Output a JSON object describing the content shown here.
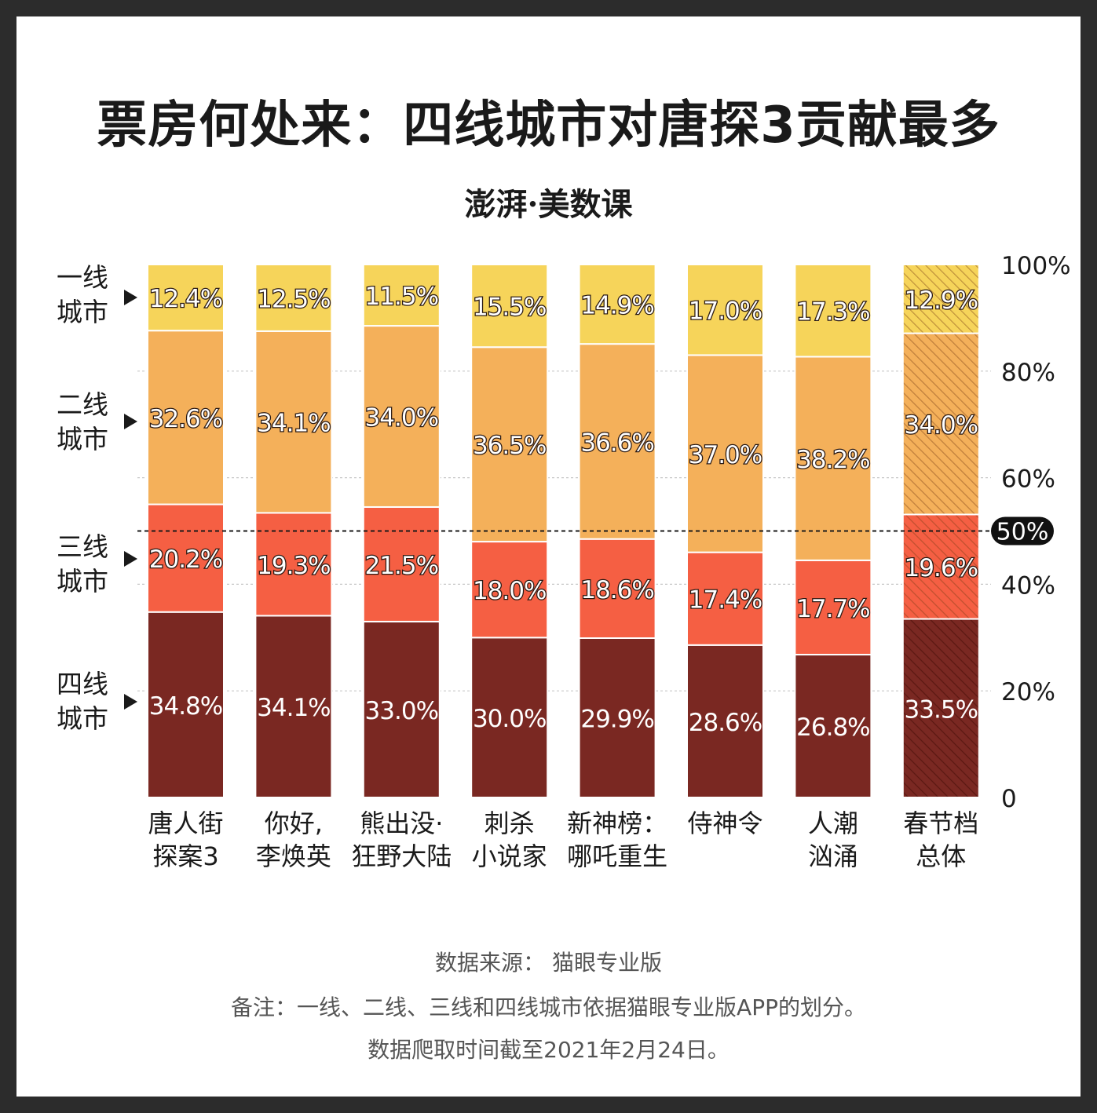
{
  "title": "票房何处来：四线城市对唐探3贡献最多",
  "brand": "澎湃·美数课",
  "tiers": [
    {
      "line1": "一线",
      "line2": "城市"
    },
    {
      "line1": "二线",
      "line2": "城市"
    },
    {
      "line1": "三线",
      "line2": "城市"
    },
    {
      "line1": "四线",
      "line2": "城市"
    }
  ],
  "footnotes": {
    "source": "数据来源： 猫眼专业版",
    "note": "备注：一线、二线、三线和四线城市依据猫眼专业版APP的划分。",
    "date": "数据爬取时间截至2021年2月24日。"
  },
  "colors": {
    "tier1": "#f6d45a",
    "tier2": "#f4b05a",
    "tier3": "#f55f43",
    "tier4": "#7a2822"
  },
  "chart_data": {
    "type": "bar",
    "stacked": true,
    "categories": [
      [
        "唐人街",
        "探案3"
      ],
      [
        "你好,",
        "李焕英"
      ],
      [
        "熊出没·",
        "狂野大陆"
      ],
      [
        "刺杀",
        "小说家"
      ],
      [
        "新神榜：",
        "哪吒重生"
      ],
      [
        "侍神令"
      ],
      [
        "人潮",
        "汹涌"
      ],
      [
        "春节档",
        "总体"
      ]
    ],
    "series": [
      {
        "tier": "四线城市",
        "values": [
          34.8,
          34.1,
          33.0,
          30.0,
          29.9,
          28.6,
          26.8,
          33.5
        ]
      },
      {
        "tier": "三线城市",
        "values": [
          20.2,
          19.3,
          21.5,
          18.0,
          18.6,
          17.4,
          17.7,
          19.6
        ]
      },
      {
        "tier": "二线城市",
        "values": [
          32.6,
          34.1,
          34.0,
          36.5,
          36.6,
          37.0,
          38.2,
          34.0
        ]
      },
      {
        "tier": "一线城市",
        "values": [
          12.4,
          12.5,
          11.5,
          15.5,
          14.9,
          17.0,
          17.3,
          12.9
        ]
      }
    ],
    "hatched_category_index": 7,
    "ylim": [
      0,
      100
    ],
    "yticks": [
      "0",
      "20%",
      "40%",
      "60%",
      "80%",
      "100%"
    ],
    "reference_line": {
      "value": 50,
      "label": "50%"
    },
    "grid": true,
    "y_axis_position": "right"
  }
}
